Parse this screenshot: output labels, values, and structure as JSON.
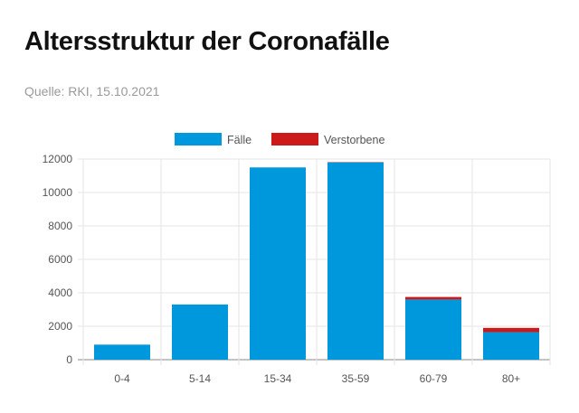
{
  "header": {
    "title": "Altersstruktur der Coronafälle",
    "source": "Quelle: RKI, 15.10.2021"
  },
  "colors": {
    "faelle": "#0098dc",
    "verstorbene": "#cc1a1a",
    "grid": "#e6e6e6",
    "axis": "#666666"
  },
  "chart_data": {
    "type": "bar",
    "stacked": true,
    "categories": [
      "0-4",
      "5-14",
      "15-34",
      "35-59",
      "60-79",
      "80+"
    ],
    "series": [
      {
        "name": "Fälle",
        "values": [
          900,
          3300,
          11500,
          11800,
          3600,
          1650
        ]
      },
      {
        "name": "Verstorbene",
        "values": [
          0,
          0,
          0,
          20,
          150,
          250
        ]
      }
    ],
    "ylim": [
      0,
      12000
    ],
    "yticks": [
      0,
      2000,
      4000,
      6000,
      8000,
      10000,
      12000
    ],
    "grid": true,
    "legend_position": "top-center"
  }
}
